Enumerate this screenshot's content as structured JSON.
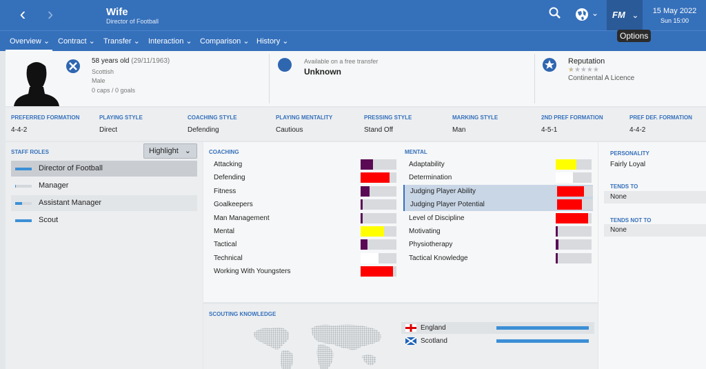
{
  "header": {
    "title": "Wife",
    "subtitle": "Director of Football",
    "fm_label": "FM",
    "date": "15 May 2022",
    "time": "Sun 15:00",
    "tooltip": "Options"
  },
  "tabs": [
    {
      "label": "Overview"
    },
    {
      "label": "Contract"
    },
    {
      "label": "Transfer"
    },
    {
      "label": "Interaction"
    },
    {
      "label": "Comparison"
    },
    {
      "label": "History"
    }
  ],
  "profile": {
    "age": "58 years old",
    "dob": "(29/11/1963)",
    "nationality": "Scottish",
    "gender": "Male",
    "caps": "0 caps / 0 goals"
  },
  "transfer": {
    "caption": "Available on a free transfer",
    "value": "Unknown"
  },
  "reputation": {
    "label": "Reputation",
    "stars": 0.5,
    "licence": "Continental A Licence"
  },
  "styles": [
    {
      "label": "PREFERRED FORMATION",
      "value": "4-4-2"
    },
    {
      "label": "PLAYING STYLE",
      "value": "Direct"
    },
    {
      "label": "COACHING STYLE",
      "value": "Defending"
    },
    {
      "label": "PLAYING MENTALITY",
      "value": "Cautious"
    },
    {
      "label": "PRESSING STYLE",
      "value": "Stand Off"
    },
    {
      "label": "MARKING STYLE",
      "value": "Man"
    },
    {
      "label": "2ND PREF FORMATION",
      "value": "4-5-1"
    },
    {
      "label": "PREF DEF. FORMATION",
      "value": "4-4-2"
    }
  ],
  "staff_roles": {
    "label": "STAFF ROLES",
    "highlight_label": "Highlight",
    "items": [
      {
        "label": "Director of Football",
        "level": 1.0
      },
      {
        "label": "Manager",
        "level": 0.05
      },
      {
        "label": "Assistant Manager",
        "level": 0.4
      },
      {
        "label": "Scout",
        "level": 1.0
      }
    ]
  },
  "coaching": {
    "label": "COACHING",
    "items": [
      {
        "name": "Attacking",
        "level": 0.35,
        "color": "#5a0a55"
      },
      {
        "name": "Defending",
        "level": 0.8,
        "color": "#ff0000"
      },
      {
        "name": "Fitness",
        "level": 0.25,
        "color": "#5a0a55"
      },
      {
        "name": "Goalkeepers",
        "level": 0.05,
        "color": "#5a0a55"
      },
      {
        "name": "Man Management",
        "level": 0.05,
        "color": "#5a0a55"
      },
      {
        "name": "Mental",
        "level": 0.65,
        "color": "#ffff00"
      },
      {
        "name": "Tactical",
        "level": 0.2,
        "color": "#5a0a55"
      },
      {
        "name": "Technical",
        "level": 0.5,
        "color": "#ffffff"
      },
      {
        "name": "Working With Youngsters",
        "level": 0.9,
        "color": "#ff0000"
      }
    ]
  },
  "mental": {
    "label": "MENTAL",
    "items": [
      {
        "name": "Adaptability",
        "level": 0.58,
        "color": "#ffff00"
      },
      {
        "name": "Determination",
        "level": 0.48,
        "color": "#ffffff"
      },
      {
        "name": "Judging Player Ability",
        "level": 0.75,
        "color": "#ff0000"
      },
      {
        "name": "Judging Player Potential",
        "level": 0.7,
        "color": "#ff0000"
      },
      {
        "name": "Level of Discipline",
        "level": 0.9,
        "color": "#ff0000"
      },
      {
        "name": "Motivating",
        "level": 0.05,
        "color": "#5a0a55"
      },
      {
        "name": "Physiotherapy",
        "level": 0.08,
        "color": "#5a0a55"
      },
      {
        "name": "Tactical Knowledge",
        "level": 0.05,
        "color": "#5a0a55"
      }
    ]
  },
  "personality": {
    "label": "PERSONALITY",
    "value": "Fairly Loyal",
    "tends_to_label": "TENDS TO",
    "tends_to_value": "None",
    "tends_not_to_label": "TENDS NOT TO",
    "tends_not_to_value": "None"
  },
  "scouting": {
    "label": "SCOUTING KNOWLEDGE",
    "countries": [
      {
        "name": "England",
        "level": 1.0
      },
      {
        "name": "Scotland",
        "level": 1.0
      }
    ]
  }
}
